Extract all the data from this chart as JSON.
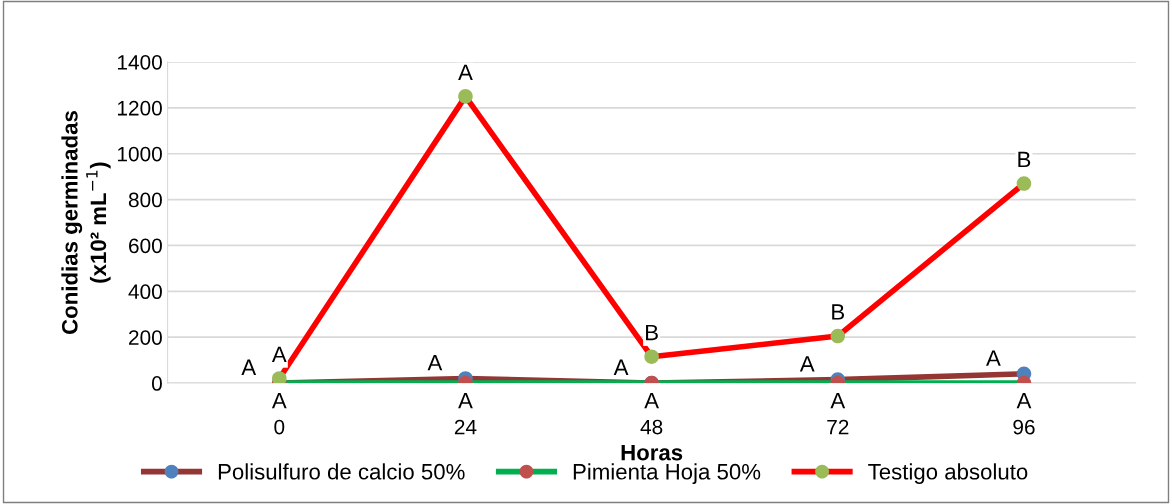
{
  "chart_data": {
    "type": "line",
    "xlabel": "Horas",
    "ylabel": "Conidias germinadas\n(x10² mL$^{−1}$)",
    "categories": [
      "0",
      "24",
      "48",
      "72",
      "96"
    ],
    "series": [
      {
        "name": "Polisulfuro de calcio 50%",
        "color": "#943634",
        "colors": [
          "#4f81bd",
          "#4f81bd",
          "#4f81bd",
          "#4f81bd",
          "#4f81bd"
        ],
        "values": [
          0,
          20,
          0,
          15,
          40
        ],
        "value_labels": [
          "A",
          "A",
          "A",
          "A",
          "A"
        ]
      },
      {
        "name": "Pimienta Hoja 50%",
        "color": "#00b050",
        "colors": [
          "#c0504d",
          "#c0504d",
          "#c0504d",
          "#c0504d",
          "#c0504d"
        ],
        "values": [
          0,
          0,
          0,
          0,
          0
        ],
        "value_labels": [
          "A",
          "A",
          "A",
          "A",
          "A"
        ]
      },
      {
        "name": "Testigo absoluto",
        "color": "#ff0000",
        "colors": [
          "#9bbb59",
          "#9bbb59",
          "#9bbb59",
          "#9bbb59",
          "#9bbb59"
        ],
        "values": [
          20,
          1250,
          115,
          205,
          870
        ],
        "value_labels": [
          "A",
          "A",
          "B",
          "B",
          "B"
        ]
      }
    ],
    "ylim": [
      0,
      1400
    ],
    "yticks": [
      0,
      200,
      400,
      600,
      800,
      1000,
      1200,
      1400
    ],
    "grid": "y",
    "legend": "bottom",
    "marker": "circle",
    "line_style": "solid"
  }
}
